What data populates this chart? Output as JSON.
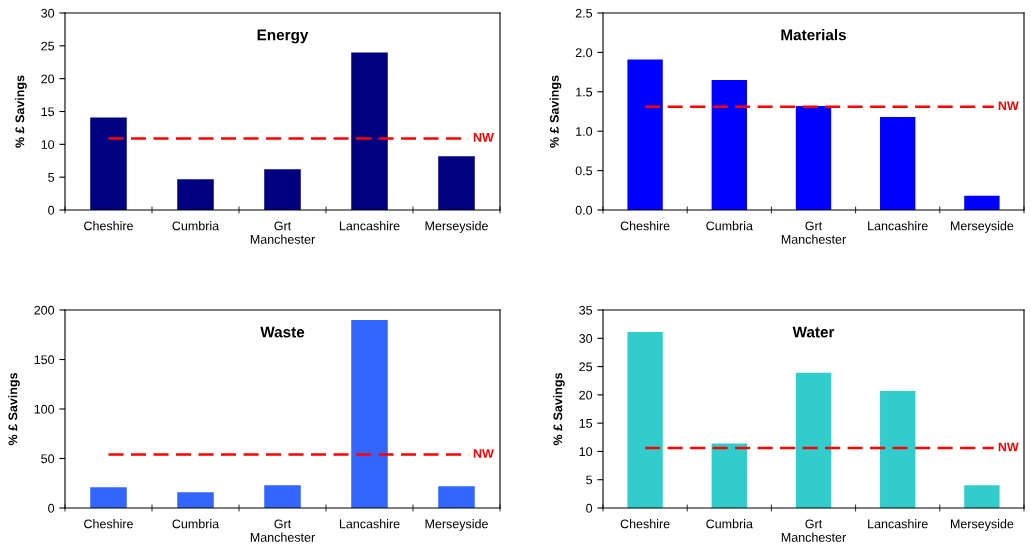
{
  "chart_data": [
    {
      "type": "bar",
      "title": "Energy",
      "ylabel": "% £ Savings",
      "categories": [
        "Cheshire",
        "Cumbria",
        "Grt\nManchester",
        "Lancashire",
        "Merseyside"
      ],
      "values": [
        14.1,
        4.7,
        6.2,
        24.0,
        8.2
      ],
      "color": "#000080",
      "ylim": [
        0,
        30
      ],
      "yticks": [
        0,
        5,
        10,
        15,
        20,
        25,
        30
      ],
      "ref_lines": [
        {
          "axis": "y",
          "value": 10.9,
          "label": "NW",
          "color": "#ff0000",
          "line_style": "dashed"
        }
      ]
    },
    {
      "type": "bar",
      "title": "Materials",
      "ylabel": "% £ Savings",
      "categories": [
        "Cheshire",
        "Cumbria",
        "Grt\nManchester",
        "Lancashire",
        "Merseyside"
      ],
      "values": [
        1.91,
        1.65,
        1.32,
        1.18,
        0.18
      ],
      "color": "#0000ff",
      "ylim": [
        0,
        2.5
      ],
      "yticks": [
        {
          "value": 0,
          "label": "0.0"
        },
        0.5,
        {
          "value": 1,
          "label": "1.0"
        },
        1.5,
        {
          "value": 2,
          "label": "2.0"
        },
        2.5
      ],
      "ref_lines": [
        {
          "axis": "y",
          "value": 1.31,
          "label": "NW",
          "color": "#ff0000",
          "line_style": "dashed"
        }
      ]
    },
    {
      "type": "bar",
      "title": "Waste",
      "ylabel": "% £ Savings",
      "categories": [
        "Cheshire",
        "Cumbria",
        "Grt\nManchester",
        "Lancashire",
        "Merseyside"
      ],
      "values": [
        21,
        16,
        23,
        190,
        22
      ],
      "color": "#3366ff",
      "ylim": [
        0,
        200
      ],
      "yticks": [
        0,
        50,
        100,
        150,
        200
      ],
      "ref_lines": [
        {
          "axis": "y",
          "value": 54,
          "label": "NW",
          "color": "#ff0000",
          "line_style": "dashed"
        }
      ]
    },
    {
      "type": "bar",
      "title": "Water",
      "ylabel": "% £ Savings",
      "categories": [
        "Cheshire",
        "Cumbria",
        "Grt\nManchester",
        "Lancashire",
        "Merseyside"
      ],
      "values": [
        31.1,
        11.4,
        23.9,
        20.7,
        4.0
      ],
      "color": "#33cccc",
      "ylim": [
        0,
        35
      ],
      "yticks": [
        0,
        5,
        10,
        15,
        20,
        25,
        30,
        35
      ],
      "ref_lines": [
        {
          "axis": "y",
          "value": 10.6,
          "label": "NW",
          "color": "#ff0000",
          "line_style": "dashed"
        }
      ]
    }
  ]
}
